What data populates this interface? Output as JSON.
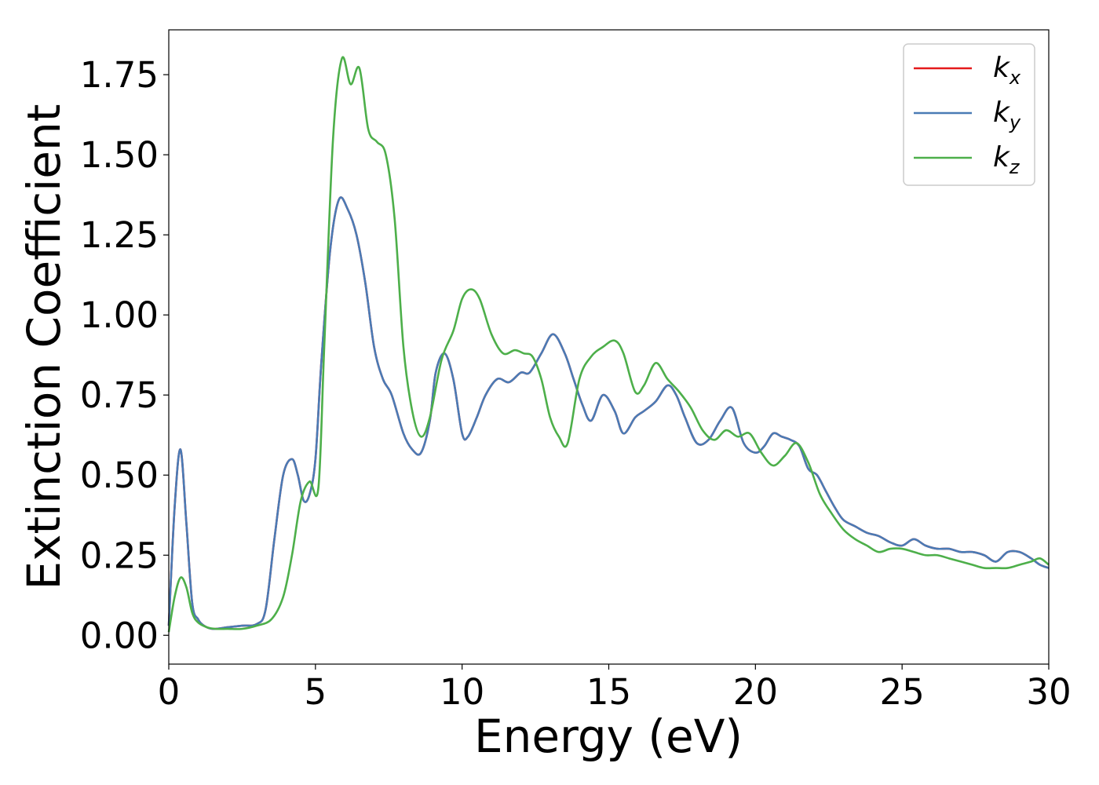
{
  "chart_data": {
    "type": "line",
    "xlabel": "Energy (eV)",
    "ylabel": "Extinction Coefficient",
    "xlim": [
      0,
      30
    ],
    "ylim": [
      -0.09,
      1.89
    ],
    "xticks": [
      0,
      5,
      10,
      15,
      20,
      25,
      30
    ],
    "xtick_labels": [
      "0",
      "5",
      "10",
      "15",
      "20",
      "25",
      "30"
    ],
    "yticks": [
      0.0,
      0.25,
      0.5,
      0.75,
      1.0,
      1.25,
      1.5,
      1.75
    ],
    "ytick_labels": [
      "0.00",
      "0.25",
      "0.50",
      "0.75",
      "1.00",
      "1.25",
      "1.50",
      "1.75"
    ],
    "grid": false,
    "legend_position": "top-right",
    "series": [
      {
        "name": "k",
        "subscript": "x",
        "color": "#e41a1c",
        "x": [
          0,
          0.2,
          0.4,
          0.6,
          0.8,
          1.0,
          1.2,
          1.5,
          2.0,
          2.5,
          3.0,
          3.3,
          3.6,
          3.9,
          4.2,
          4.4,
          4.6,
          4.8,
          5.0,
          5.2,
          5.5,
          5.8,
          6.1,
          6.4,
          6.7,
          7.0,
          7.3,
          7.6,
          8.0,
          8.3,
          8.6,
          8.9,
          9.1,
          9.4,
          9.7,
          10.0,
          10.2,
          10.5,
          10.8,
          11.2,
          11.6,
          12.0,
          12.3,
          12.7,
          13.1,
          13.5,
          13.8,
          14.1,
          14.4,
          14.8,
          15.2,
          15.5,
          15.9,
          16.2,
          16.6,
          17.0,
          17.3,
          17.6,
          18.0,
          18.4,
          18.8,
          19.2,
          19.6,
          20.0,
          20.3,
          20.6,
          20.9,
          21.2,
          21.5,
          21.8,
          22.1,
          22.4,
          22.7,
          23.0,
          23.4,
          23.8,
          24.2,
          24.6,
          25.0,
          25.4,
          25.8,
          26.2,
          26.6,
          27.0,
          27.4,
          27.8,
          28.2,
          28.6,
          29.0,
          29.4,
          29.7,
          30.0
        ],
        "y": [
          0.03,
          0.4,
          0.58,
          0.35,
          0.1,
          0.05,
          0.03,
          0.02,
          0.025,
          0.03,
          0.035,
          0.08,
          0.3,
          0.5,
          0.55,
          0.5,
          0.42,
          0.44,
          0.55,
          0.85,
          1.2,
          1.36,
          1.33,
          1.25,
          1.1,
          0.9,
          0.8,
          0.75,
          0.63,
          0.58,
          0.57,
          0.67,
          0.82,
          0.88,
          0.8,
          0.63,
          0.62,
          0.68,
          0.75,
          0.8,
          0.79,
          0.82,
          0.82,
          0.88,
          0.94,
          0.88,
          0.8,
          0.72,
          0.67,
          0.75,
          0.7,
          0.63,
          0.68,
          0.7,
          0.73,
          0.78,
          0.75,
          0.68,
          0.6,
          0.61,
          0.67,
          0.71,
          0.6,
          0.57,
          0.59,
          0.63,
          0.62,
          0.61,
          0.59,
          0.52,
          0.5,
          0.45,
          0.4,
          0.36,
          0.34,
          0.32,
          0.31,
          0.29,
          0.28,
          0.3,
          0.28,
          0.27,
          0.27,
          0.26,
          0.26,
          0.25,
          0.23,
          0.26,
          0.26,
          0.24,
          0.22,
          0.21
        ]
      },
      {
        "name": "k",
        "subscript": "y",
        "color": "#4a7bb5",
        "x": [
          0,
          0.2,
          0.4,
          0.6,
          0.8,
          1.0,
          1.2,
          1.5,
          2.0,
          2.5,
          3.0,
          3.3,
          3.6,
          3.9,
          4.2,
          4.4,
          4.6,
          4.8,
          5.0,
          5.2,
          5.5,
          5.8,
          6.1,
          6.4,
          6.7,
          7.0,
          7.3,
          7.6,
          8.0,
          8.3,
          8.6,
          8.9,
          9.1,
          9.4,
          9.7,
          10.0,
          10.2,
          10.5,
          10.8,
          11.2,
          11.6,
          12.0,
          12.3,
          12.7,
          13.1,
          13.5,
          13.8,
          14.1,
          14.4,
          14.8,
          15.2,
          15.5,
          15.9,
          16.2,
          16.6,
          17.0,
          17.3,
          17.6,
          18.0,
          18.4,
          18.8,
          19.2,
          19.6,
          20.0,
          20.3,
          20.6,
          20.9,
          21.2,
          21.5,
          21.8,
          22.1,
          22.4,
          22.7,
          23.0,
          23.4,
          23.8,
          24.2,
          24.6,
          25.0,
          25.4,
          25.8,
          26.2,
          26.6,
          27.0,
          27.4,
          27.8,
          28.2,
          28.6,
          29.0,
          29.4,
          29.7,
          30.0
        ],
        "y": [
          0.03,
          0.4,
          0.58,
          0.35,
          0.1,
          0.05,
          0.03,
          0.02,
          0.025,
          0.03,
          0.035,
          0.08,
          0.3,
          0.5,
          0.55,
          0.5,
          0.42,
          0.44,
          0.55,
          0.85,
          1.2,
          1.36,
          1.33,
          1.25,
          1.1,
          0.9,
          0.8,
          0.75,
          0.63,
          0.58,
          0.57,
          0.67,
          0.82,
          0.88,
          0.8,
          0.63,
          0.62,
          0.68,
          0.75,
          0.8,
          0.79,
          0.82,
          0.82,
          0.88,
          0.94,
          0.88,
          0.8,
          0.72,
          0.67,
          0.75,
          0.7,
          0.63,
          0.68,
          0.7,
          0.73,
          0.78,
          0.75,
          0.68,
          0.6,
          0.61,
          0.67,
          0.71,
          0.6,
          0.57,
          0.59,
          0.63,
          0.62,
          0.61,
          0.59,
          0.52,
          0.5,
          0.45,
          0.4,
          0.36,
          0.34,
          0.32,
          0.31,
          0.29,
          0.28,
          0.3,
          0.28,
          0.27,
          0.27,
          0.26,
          0.26,
          0.25,
          0.23,
          0.26,
          0.26,
          0.24,
          0.22,
          0.21
        ]
      },
      {
        "name": "k",
        "subscript": "z",
        "color": "#4daf4a",
        "x": [
          0,
          0.2,
          0.4,
          0.6,
          0.8,
          1.0,
          1.3,
          1.6,
          2.0,
          2.5,
          3.0,
          3.5,
          3.9,
          4.2,
          4.5,
          4.8,
          5.1,
          5.3,
          5.6,
          5.9,
          6.2,
          6.5,
          6.8,
          7.1,
          7.4,
          7.7,
          8.0,
          8.3,
          8.6,
          8.9,
          9.3,
          9.7,
          10.0,
          10.3,
          10.6,
          11.0,
          11.4,
          11.8,
          12.1,
          12.4,
          12.7,
          13.0,
          13.3,
          13.6,
          14.0,
          14.4,
          14.8,
          15.2,
          15.5,
          15.9,
          16.2,
          16.6,
          17.0,
          17.4,
          17.8,
          18.2,
          18.6,
          19.0,
          19.4,
          19.8,
          20.2,
          20.6,
          21.0,
          21.4,
          21.8,
          22.2,
          22.6,
          23.0,
          23.4,
          23.8,
          24.2,
          24.6,
          25.0,
          25.4,
          25.8,
          26.2,
          26.6,
          27.0,
          27.4,
          27.8,
          28.2,
          28.6,
          29.0,
          29.4,
          29.7,
          30.0
        ],
        "y": [
          0.01,
          0.12,
          0.18,
          0.15,
          0.07,
          0.04,
          0.025,
          0.02,
          0.02,
          0.02,
          0.03,
          0.05,
          0.12,
          0.25,
          0.42,
          0.48,
          0.46,
          0.9,
          1.55,
          1.8,
          1.72,
          1.77,
          1.58,
          1.54,
          1.5,
          1.3,
          0.9,
          0.7,
          0.62,
          0.68,
          0.86,
          0.95,
          1.05,
          1.08,
          1.05,
          0.94,
          0.88,
          0.89,
          0.88,
          0.87,
          0.8,
          0.68,
          0.62,
          0.6,
          0.8,
          0.87,
          0.9,
          0.92,
          0.88,
          0.76,
          0.78,
          0.85,
          0.8,
          0.76,
          0.71,
          0.64,
          0.61,
          0.64,
          0.62,
          0.63,
          0.57,
          0.53,
          0.56,
          0.6,
          0.54,
          0.44,
          0.38,
          0.33,
          0.3,
          0.28,
          0.26,
          0.27,
          0.27,
          0.26,
          0.25,
          0.25,
          0.24,
          0.23,
          0.22,
          0.21,
          0.21,
          0.21,
          0.22,
          0.23,
          0.24,
          0.22
        ]
      }
    ]
  }
}
